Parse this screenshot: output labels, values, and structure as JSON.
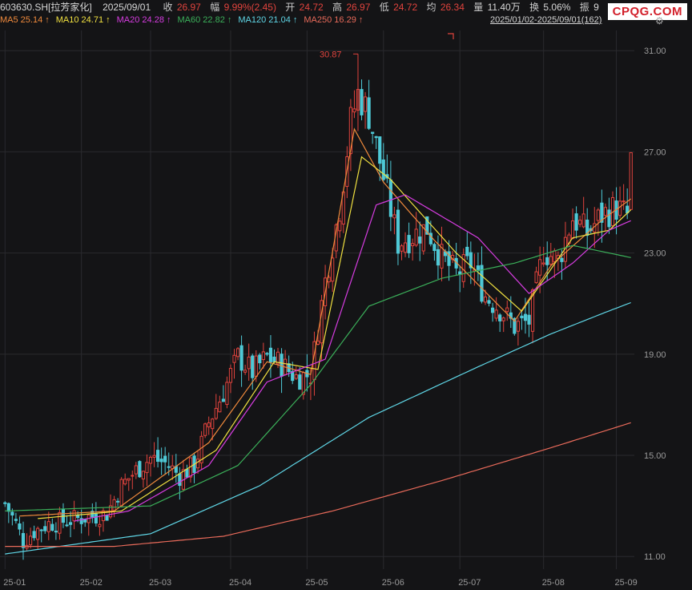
{
  "header": {
    "symbol": "603630.SH[拉芳家化]",
    "date": "2025/09/01",
    "close_label": "收",
    "close": "26.97",
    "change_label": "幅",
    "change": "9.99%(2.45)",
    "open_label": "开",
    "open": "24.72",
    "high_label": "高",
    "high": "26.97",
    "low_label": "低",
    "low": "24.72",
    "avg_label": "均",
    "avg": "26.34",
    "volume_label": "量",
    "volume": "11.40万",
    "turnover_label": "换",
    "turnover": "5.06%",
    "amplitude_label": "振",
    "amplitude": "9"
  },
  "watermark": "CPQG.COM",
  "date_range": "2025/01/02-2025/09/01(162)",
  "settings_icon": "gear-icon",
  "moving_averages": [
    {
      "label": "MA5",
      "value": "25.14",
      "arrow": "↑",
      "color": "#f08a3c"
    },
    {
      "label": "MA10",
      "value": "24.71",
      "arrow": "↑",
      "color": "#f0e040"
    },
    {
      "label": "MA20",
      "value": "24.28",
      "arrow": "↑",
      "color": "#d63ce0"
    },
    {
      "label": "MA60",
      "value": "22.82",
      "arrow": "↑",
      "color": "#3bb05a"
    },
    {
      "label": "MA120",
      "value": "21.04",
      "arrow": "↑",
      "color": "#5fd6e6"
    },
    {
      "label": "MA250",
      "value": "16.29",
      "arrow": "↑",
      "color": "#e86a5a"
    }
  ],
  "colors": {
    "up": "#e0433d",
    "down": "#4ec9d6",
    "grid": "#2a2a2e",
    "background": "#141416"
  },
  "chart_data": {
    "type": "candlestick",
    "ylim": [
      10.5,
      31.8
    ],
    "y_ticks": [
      "11.00",
      "15.00",
      "19.00",
      "23.00",
      "27.00",
      "31.00"
    ],
    "x_ticks": [
      "25-01",
      "25-02",
      "25-03",
      "25-04",
      "25-05",
      "25-06",
      "25-07",
      "25-08",
      "25-09"
    ],
    "high_annotation": "30.87",
    "grid": true,
    "anchors": [
      [
        0,
        13.1
      ],
      [
        3,
        12.3
      ],
      [
        5,
        11.6
      ],
      [
        8,
        12.0
      ],
      [
        12,
        12.3
      ],
      [
        16,
        12.4
      ],
      [
        20,
        12.5
      ],
      [
        24,
        12.6
      ],
      [
        28,
        12.7
      ],
      [
        32,
        13.8
      ],
      [
        36,
        14.4
      ],
      [
        40,
        14.9
      ],
      [
        44,
        14.7
      ],
      [
        48,
        14.2
      ],
      [
        52,
        14.6
      ],
      [
        56,
        16.3
      ],
      [
        60,
        17.5
      ],
      [
        64,
        18.9
      ],
      [
        68,
        18.3
      ],
      [
        72,
        18.9
      ],
      [
        76,
        18.6
      ],
      [
        80,
        18.1
      ],
      [
        84,
        18.2
      ],
      [
        88,
        21.9
      ],
      [
        92,
        24.8
      ],
      [
        95,
        28.2
      ],
      [
        97,
        29.3
      ],
      [
        100,
        28.5
      ],
      [
        104,
        26.0
      ],
      [
        108,
        23.4
      ],
      [
        112,
        23.7
      ],
      [
        116,
        24.0
      ],
      [
        120,
        22.8
      ],
      [
        124,
        22.2
      ],
      [
        128,
        22.6
      ],
      [
        132,
        21.3
      ],
      [
        136,
        20.8
      ],
      [
        140,
        20.1
      ],
      [
        144,
        20.3
      ],
      [
        148,
        23.1
      ],
      [
        152,
        22.7
      ],
      [
        156,
        24.4
      ],
      [
        160,
        23.8
      ],
      [
        164,
        24.5
      ],
      [
        168,
        24.8
      ],
      [
        171,
        24.5
      ],
      [
        172,
        26.97
      ]
    ],
    "ma_anchors": {
      "MA5": [
        [
          4,
          12.6
        ],
        [
          30,
          12.8
        ],
        [
          56,
          15.5
        ],
        [
          72,
          18.7
        ],
        [
          84,
          18.2
        ],
        [
          96,
          27.9
        ],
        [
          104,
          25.8
        ],
        [
          118,
          23.5
        ],
        [
          140,
          20.3
        ],
        [
          150,
          22.5
        ],
        [
          164,
          24.3
        ],
        [
          172,
          25.14
        ]
      ],
      "MA10": [
        [
          9,
          12.5
        ],
        [
          32,
          12.8
        ],
        [
          58,
          15.2
        ],
        [
          74,
          18.7
        ],
        [
          86,
          18.4
        ],
        [
          98,
          26.8
        ],
        [
          106,
          25.9
        ],
        [
          124,
          23.0
        ],
        [
          142,
          20.7
        ],
        [
          156,
          23.6
        ],
        [
          166,
          23.9
        ],
        [
          172,
          24.71
        ]
      ],
      "MA20": [
        [
          19,
          12.4
        ],
        [
          34,
          12.8
        ],
        [
          56,
          14.6
        ],
        [
          72,
          17.9
        ],
        [
          88,
          18.8
        ],
        [
          102,
          24.9
        ],
        [
          110,
          25.3
        ],
        [
          130,
          23.6
        ],
        [
          144,
          21.4
        ],
        [
          156,
          22.6
        ],
        [
          166,
          23.9
        ],
        [
          172,
          24.28
        ]
      ],
      "MA60": [
        [
          0,
          12.8
        ],
        [
          40,
          13.0
        ],
        [
          64,
          14.6
        ],
        [
          84,
          17.8
        ],
        [
          100,
          20.9
        ],
        [
          120,
          22.0
        ],
        [
          140,
          22.6
        ],
        [
          156,
          23.3
        ],
        [
          166,
          23.0
        ],
        [
          172,
          22.82
        ]
      ],
      "MA120": [
        [
          0,
          11.1
        ],
        [
          40,
          11.9
        ],
        [
          70,
          13.8
        ],
        [
          100,
          16.5
        ],
        [
          130,
          18.5
        ],
        [
          150,
          19.8
        ],
        [
          164,
          20.6
        ],
        [
          172,
          21.04
        ]
      ],
      "MA250": [
        [
          0,
          11.4
        ],
        [
          30,
          11.4
        ],
        [
          60,
          11.8
        ],
        [
          90,
          12.8
        ],
        [
          120,
          14.0
        ],
        [
          150,
          15.3
        ],
        [
          172,
          16.29
        ]
      ]
    }
  }
}
